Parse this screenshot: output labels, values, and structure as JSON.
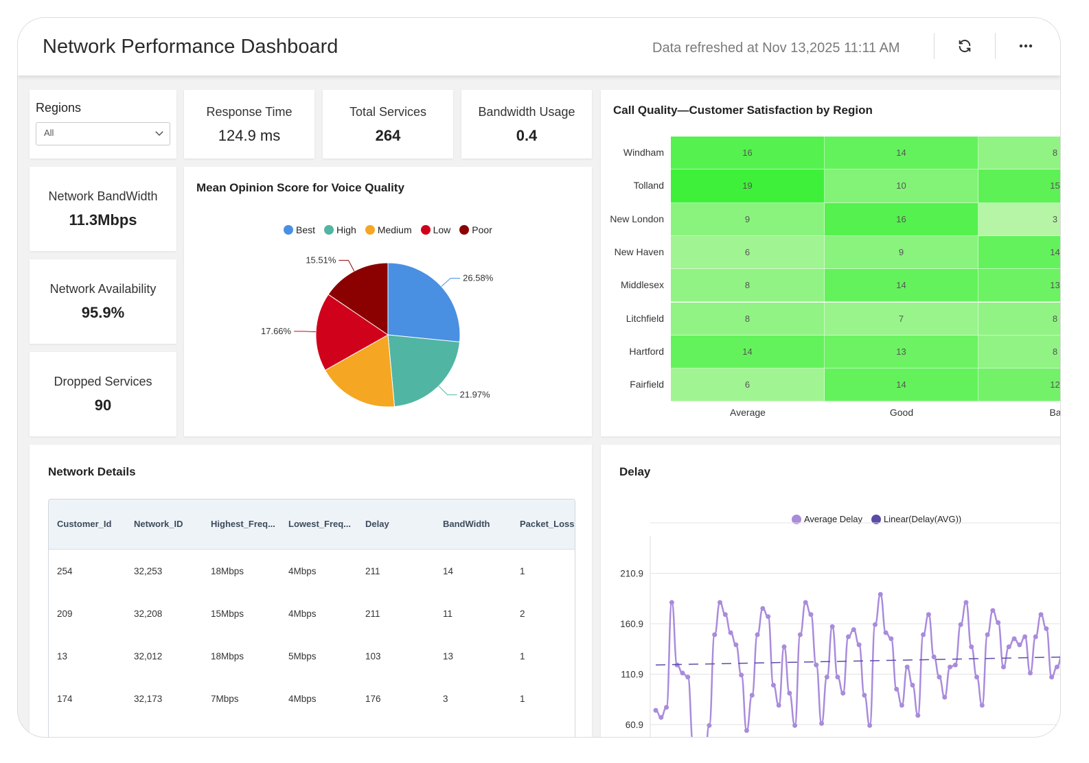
{
  "header": {
    "title": "Network Performance Dashboard",
    "refreshed": "Data refreshed at Nov 13,2025 11:11 AM",
    "refresh_icon": "refresh-icon",
    "more_icon": "more-horizontal-icon"
  },
  "regions": {
    "label": "Regions",
    "selected": "All"
  },
  "kpis": {
    "response_time": {
      "label": "Response Time",
      "value": "124.9 ms"
    },
    "total_services": {
      "label": "Total Services",
      "value": "264"
    },
    "bandwidth_usage": {
      "label": "Bandwidth Usage",
      "value": "0.4"
    },
    "network_bandwidth": {
      "label": "Network BandWidth",
      "value": "11.3Mbps"
    },
    "network_availability": {
      "label": "Network Availability",
      "value": "95.9%"
    },
    "dropped_services": {
      "label": "Dropped Services",
      "value": "90"
    }
  },
  "pie": {
    "title": "Mean Opinion Score for Voice Quality"
  },
  "heatmap": {
    "title": "Call Quality—Customer Satisfaction by Region"
  },
  "network_details": {
    "title": "Network Details",
    "columns": [
      "Customer_Id",
      "Network_ID",
      "Highest_Freq...",
      "Lowest_Freq...",
      "Delay",
      "BandWidth",
      "Packet_Loss"
    ],
    "rows": [
      [
        "254",
        "32,253",
        "18Mbps",
        "4Mbps",
        "211",
        "14",
        "1"
      ],
      [
        "209",
        "32,208",
        "15Mbps",
        "4Mbps",
        "211",
        "11",
        "2"
      ],
      [
        "13",
        "32,012",
        "18Mbps",
        "5Mbps",
        "103",
        "13",
        "1"
      ],
      [
        "174",
        "32,173",
        "7Mbps",
        "4Mbps",
        "176",
        "3",
        "1"
      ]
    ]
  },
  "delay": {
    "title": "Delay"
  },
  "chart_data": [
    {
      "type": "pie",
      "title": "Mean Opinion Score for Voice Quality",
      "categories": [
        "Best",
        "High",
        "Medium",
        "Low",
        "Poor"
      ],
      "values": [
        26.58,
        21.97,
        18.28,
        17.66,
        15.51
      ],
      "labels": [
        "26.58%",
        "21.97%",
        "",
        "17.66%",
        "15.51%"
      ],
      "colors": [
        "#4a90e2",
        "#50b5a2",
        "#f5a623",
        "#d0021b",
        "#8b0000"
      ],
      "legend": "top"
    },
    {
      "type": "heatmap",
      "title": "Call Quality—Customer Satisfaction by Region",
      "rows": [
        "Windham",
        "Tolland",
        "New London",
        "New Haven",
        "Middlesex",
        "Litchfield",
        "Hartford",
        "Fairfield"
      ],
      "columns": [
        "Average",
        "Good",
        "Ba"
      ],
      "values": [
        [
          16,
          14,
          8
        ],
        [
          19,
          10,
          15
        ],
        [
          9,
          16,
          3
        ],
        [
          6,
          9,
          14
        ],
        [
          8,
          14,
          13
        ],
        [
          8,
          7,
          8
        ],
        [
          14,
          13,
          8
        ],
        [
          6,
          14,
          12
        ]
      ],
      "visible_cells_col3": [
        "8",
        "15",
        "3",
        "14",
        "13",
        "8",
        "8",
        "12"
      ],
      "color_scale": [
        "#b6f5a6",
        "#3ff03a"
      ]
    },
    {
      "type": "line",
      "title": "Delay",
      "series": [
        {
          "name": "Average Delay",
          "color": "#a98bdc",
          "values": [
            75,
            68,
            78,
            182,
            120,
            112,
            108,
            42,
            18,
            12,
            60,
            150,
            182,
            170,
            152,
            140,
            110,
            55,
            90,
            150,
            176,
            168,
            100,
            80,
            138,
            92,
            60,
            150,
            182,
            170,
            120,
            62,
            108,
            158,
            108,
            92,
            148,
            155,
            140,
            90,
            60,
            160,
            190,
            152,
            146,
            96,
            80,
            118,
            100,
            70,
            150,
            170,
            128,
            108,
            88,
            118,
            120,
            160,
            182,
            138,
            108,
            80,
            150,
            174,
            162,
            118,
            138,
            146,
            140,
            148,
            112,
            148,
            170,
            156,
            108,
            118,
            130,
            122
          ]
        },
        {
          "name": "Linear(Delay(AVG))",
          "color": "#5b4aa8",
          "values": [
            120,
            128
          ]
        }
      ],
      "yticks": [
        "60.9",
        "110.9",
        "160.9",
        "210.9"
      ],
      "ylim": [
        60.9,
        260.9
      ],
      "legend": "top",
      "grid": true
    }
  ]
}
